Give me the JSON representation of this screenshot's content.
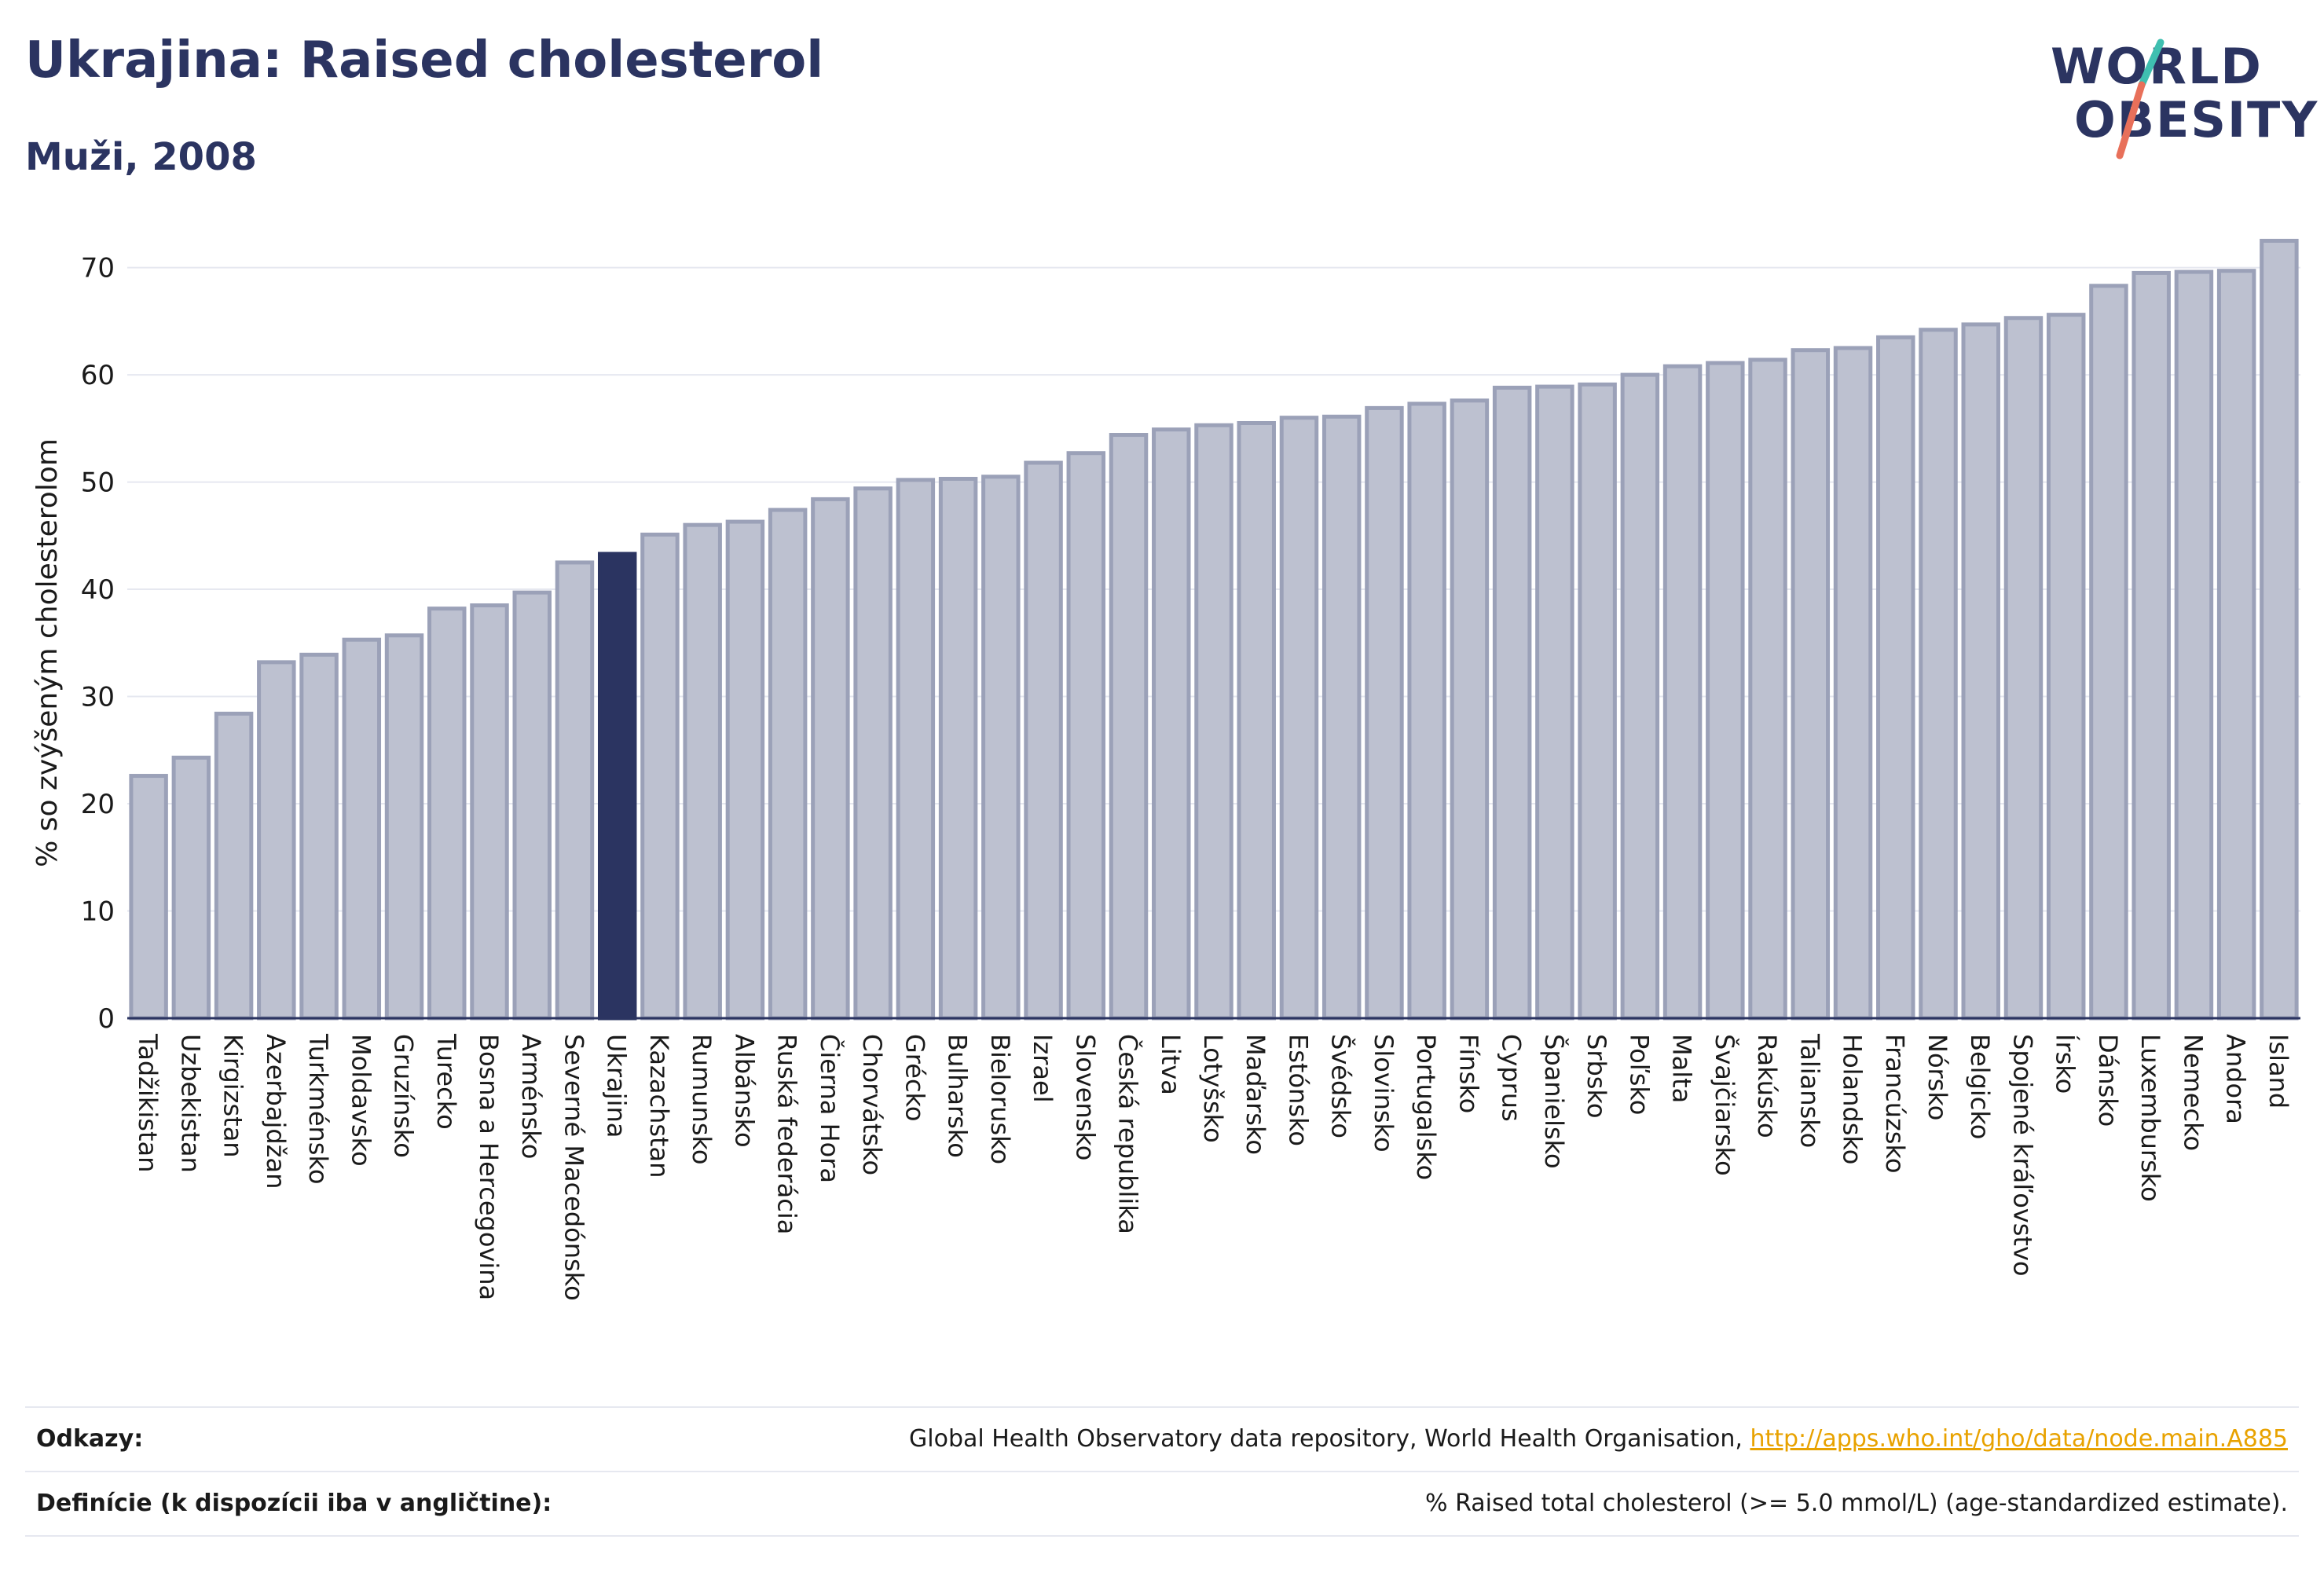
{
  "header": {
    "title": "Ukrajina: Raised cholesterol",
    "subtitle": "Muži, 2008"
  },
  "logo": {
    "line1": "WORLD",
    "line2": "OBESITY"
  },
  "footer": {
    "sources_label": "Odkazy:",
    "sources_text": "Global Health Observatory data repository, World Health Organisation, ",
    "sources_link": "http://apps.who.int/gho/data/node.main.A885",
    "definitions_label": "Definície (k dispozícii iba v angličtine):",
    "definitions_text": "% Raised total cholesterol (>= 5.0 mmol/L) (age-standardized estimate)."
  },
  "colors": {
    "bar": "#bdc1d0",
    "bar_edge": "#9ba1b8",
    "highlight": "#2b3461",
    "text": "#2b3461",
    "link": "#e8a200"
  },
  "chart_data": {
    "type": "bar",
    "ylabel": "% so zvýšeným cholesterolom",
    "xlabel": "",
    "ylim": [
      0,
      74
    ],
    "yticks": [
      0,
      10,
      20,
      30,
      40,
      50,
      60,
      70
    ],
    "grid": true,
    "highlight": "Ukrajina",
    "categories": [
      "Tadžikistan",
      "Uzbekistan",
      "Kirgizstan",
      "Azerbajdžan",
      "Turkménsko",
      "Moldavsko",
      "Gruzínsko",
      "Turecko",
      "Bosna a Hercegovina",
      "Arménsko",
      "Severné Macedónsko",
      "Ukrajina",
      "Kazachstan",
      "Rumunsko",
      "Albánsko",
      "Ruská federácia",
      "Čierna Hora",
      "Chorvátsko",
      "Grécko",
      "Bulharsko",
      "Bielorusko",
      "Izrael",
      "Slovensko",
      "Česká republika",
      "Litva",
      "Lotyšsko",
      "Maďarsko",
      "Estónsko",
      "Švédsko",
      "Slovinsko",
      "Portugalsko",
      "Fínsko",
      "Cyprus",
      "Španielsko",
      "Srbsko",
      "Poľsko",
      "Malta",
      "Švajčiarsko",
      "Rakúsko",
      "Taliansko",
      "Holandsko",
      "Francúzsko",
      "Nórsko",
      "Belgicko",
      "Spojené kráľovstvo",
      "Írsko",
      "Dánsko",
      "Luxembursko",
      "Nemecko",
      "Andora",
      "Island"
    ],
    "values": [
      22.6,
      24.3,
      28.4,
      33.2,
      33.9,
      35.3,
      35.7,
      38.2,
      38.5,
      39.7,
      42.5,
      43.3,
      45.1,
      46.0,
      46.3,
      47.4,
      48.4,
      49.4,
      50.2,
      50.3,
      50.5,
      51.8,
      52.7,
      54.4,
      54.9,
      55.3,
      55.5,
      56.0,
      56.1,
      56.9,
      57.3,
      57.6,
      58.8,
      58.9,
      59.1,
      60.0,
      60.8,
      61.1,
      61.4,
      62.3,
      62.5,
      63.5,
      64.2,
      64.7,
      65.3,
      65.6,
      68.3,
      69.5,
      69.6,
      69.7,
      72.5
    ]
  }
}
